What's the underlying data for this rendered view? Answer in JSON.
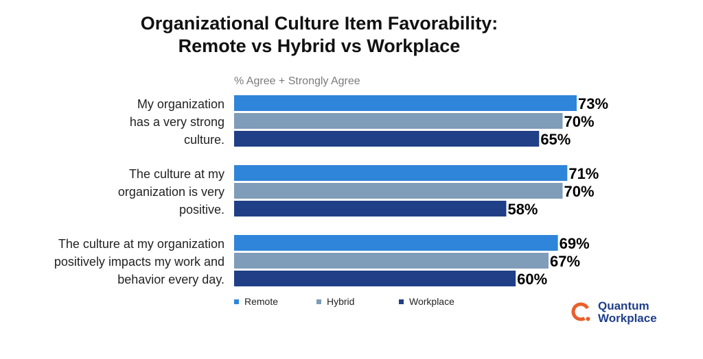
{
  "chart_data": {
    "type": "bar",
    "orientation": "horizontal",
    "title": [
      "Organizational Culture Item Favorability:",
      "Remote vs Hybrid vs Workplace"
    ],
    "subtitle": "% Agree + Strongly Agree",
    "categories": [
      [
        "My organization",
        "has a very strong",
        "culture."
      ],
      [
        "The culture at my",
        "organization is very",
        "positive."
      ],
      [
        "The culture at my organization",
        "positively impacts my work and",
        "behavior every day."
      ]
    ],
    "series": [
      {
        "name": "Remote",
        "color": "#2f85d9",
        "values": [
          73,
          71,
          69
        ],
        "labels": [
          "73%",
          "71%",
          "69%"
        ]
      },
      {
        "name": "Hybrid",
        "color": "#7f9cb9",
        "values": [
          70,
          70,
          67
        ],
        "labels": [
          "70%",
          "70%",
          "67%"
        ]
      },
      {
        "name": "Workplace",
        "color": "#203f87",
        "values": [
          65,
          58,
          60
        ],
        "labels": [
          "65%",
          "58%",
          "60%"
        ]
      }
    ],
    "xlim": [
      0,
      73
    ],
    "legend": "bottom"
  },
  "logo": {
    "line1": "Quantum",
    "line2": "Workplace",
    "colors": {
      "mark": "#e8602c",
      "text": "#1f3f8a"
    }
  }
}
